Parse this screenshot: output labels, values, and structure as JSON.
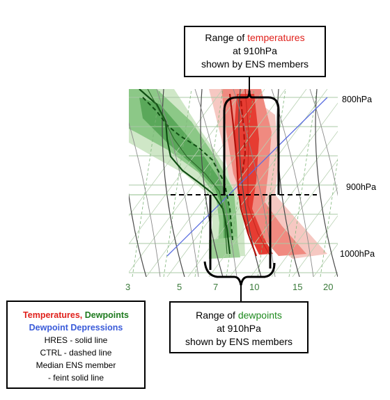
{
  "callout_temperatures": {
    "line1_prefix": "Range of ",
    "line1_highlight": "temperatures",
    "line2": "at 910hPa",
    "line3": "shown by ENS members"
  },
  "callout_dewpoints": {
    "line1_prefix": "Range of ",
    "line1_highlight": "dewpoints",
    "line2": "at 910hPa",
    "line3": "shown by ENS members"
  },
  "legend": {
    "temperatures": "Temperatures,",
    "dewpoints": "Dewpoints",
    "depressions": "Dewpoint Depressions",
    "hres": "HRES - solid line",
    "ctrl": "CTRL - dashed line",
    "median_1": "Median ENS member",
    "median_2": "- feint solid line"
  },
  "pressure_labels": [
    "800hPa",
    "900hPa",
    "1000hPa"
  ],
  "temperature_axis_labels": [
    "3",
    "5",
    "7",
    "10",
    "15",
    "20"
  ],
  "colors": {
    "temperature": "#e0201b",
    "dewpoint": "#1e7a1e",
    "depression": "#3a5bd9",
    "dry_adiabat": "#c8d7c2",
    "isotherm": "#4a4a4a"
  }
}
